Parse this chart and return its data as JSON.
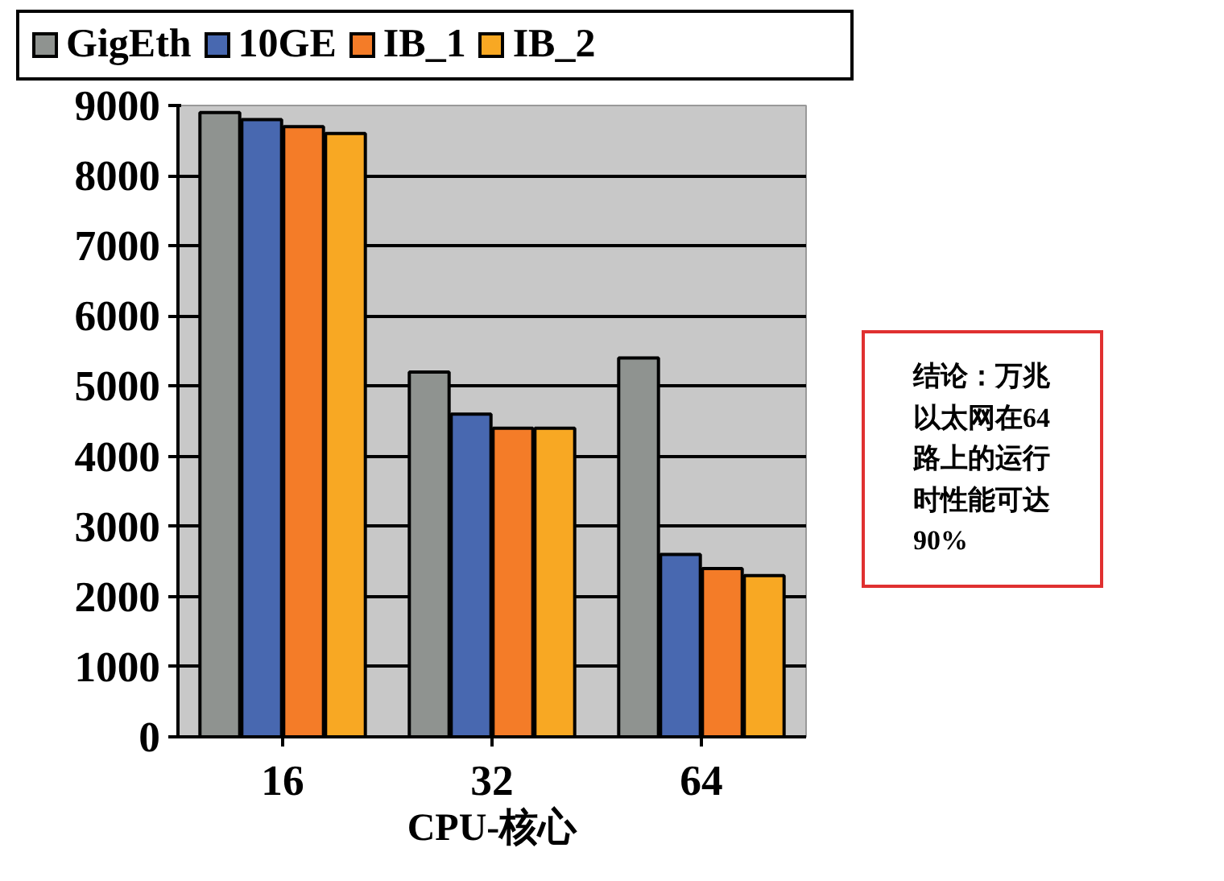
{
  "chart_data": {
    "type": "bar",
    "categories": [
      "16",
      "32",
      "64"
    ],
    "xlabel": "CPU-核心",
    "series": [
      {
        "name": "GigEth",
        "color": "#8f9390",
        "values": [
          8900,
          5200,
          5400
        ]
      },
      {
        "name": "10GE",
        "color": "#4868b0",
        "values": [
          8800,
          4600,
          2600
        ]
      },
      {
        "name": "IB_1",
        "color": "#f47c28",
        "values": [
          8700,
          4400,
          2400
        ]
      },
      {
        "name": "IB_2",
        "color": "#f8a823",
        "values": [
          8600,
          4400,
          2300
        ]
      }
    ],
    "ylim": [
      0,
      9000
    ],
    "yticks": [
      0,
      1000,
      2000,
      3000,
      4000,
      5000,
      6000,
      7000,
      8000,
      9000
    ],
    "grid": "y",
    "legend": "top left",
    "annotations": [
      "结论：万兆以太网在64路上的运行时性能可达90%"
    ]
  }
}
